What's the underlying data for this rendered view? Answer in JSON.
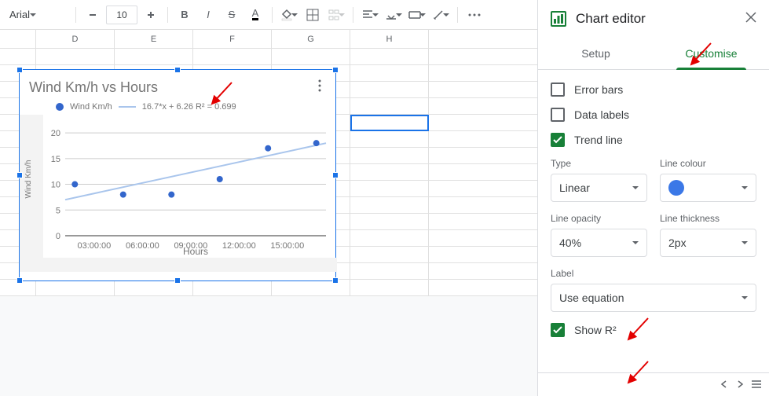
{
  "toolbar": {
    "font_name": "Arial",
    "font_size": "10"
  },
  "sheet": {
    "columns": [
      "D",
      "E",
      "F",
      "G",
      "H"
    ]
  },
  "chart": {
    "type": "scatter",
    "title": "Wind Km/h vs Hours",
    "series_label": "Wind Km/h",
    "trend_label": "16.7*x + 6.26 R² = 0.699",
    "x_label": "Hours",
    "y_label": "Wind Km/h",
    "x_ticks": [
      "03:00:00",
      "06:00:00",
      "09:00:00",
      "12:00:00",
      "15:00:00"
    ],
    "y_ticks": [
      0,
      5,
      10,
      15,
      20
    ],
    "ylim": [
      0,
      22
    ],
    "points": [
      {
        "xi": 0,
        "y": 10
      },
      {
        "xi": 1,
        "y": 8
      },
      {
        "xi": 2,
        "y": 8
      },
      {
        "xi": 3,
        "y": 11
      },
      {
        "xi": 4,
        "y": 17
      },
      {
        "xi": 5,
        "y": 18
      }
    ],
    "trend_y0": 7,
    "trend_y1": 18,
    "marker_color": "#3366cc",
    "trend_color": "#a9c5ec",
    "grid_color": "#cccccc",
    "axis_color": "#333333",
    "text_color": "#757575",
    "title_fontsize": 18,
    "tick_fontsize": 11,
    "label_fontsize": 12,
    "marker_radius": 4,
    "trend_width": 2,
    "plot_bg": "#ffffff",
    "outer_hatch": "#f3f3f3"
  },
  "panel": {
    "title": "Chart editor",
    "tab_setup": "Setup",
    "tab_customise": "Customise",
    "opt_error_bars": "Error bars",
    "opt_data_labels": "Data labels",
    "opt_trend_line": "Trend line",
    "lbl_type": "Type",
    "val_type": "Linear",
    "lbl_line_colour": "Line colour",
    "val_line_colour": "#3b78e7",
    "lbl_opacity": "Line opacity",
    "val_opacity": "40%",
    "lbl_thickness": "Line thickness",
    "val_thickness": "2px",
    "lbl_label": "Label",
    "val_label": "Use equation",
    "opt_show_r2": "Show R²"
  }
}
